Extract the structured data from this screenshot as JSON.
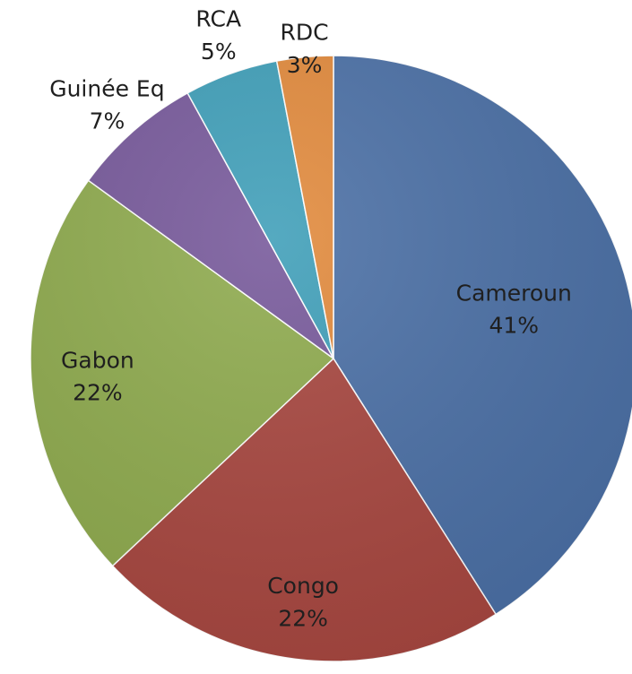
{
  "chart_data": {
    "type": "pie",
    "title": "",
    "xlabel": "",
    "ylabel": "",
    "grid": false,
    "legend": "none",
    "categories": [
      "Cameroun",
      "Congo",
      "Gabon",
      "Guinée Eq",
      "RCA",
      "RDC"
    ],
    "values": [
      41,
      22,
      22,
      7,
      5,
      3
    ],
    "value_labels": [
      "41%",
      "22%",
      "22%",
      "7%",
      "5%",
      "3%"
    ],
    "colors": [
      "#4A6FA5",
      "#A7463F",
      "#8EAA4D",
      "#76589A",
      "#3E9EB8",
      "#E1893B"
    ]
  }
}
